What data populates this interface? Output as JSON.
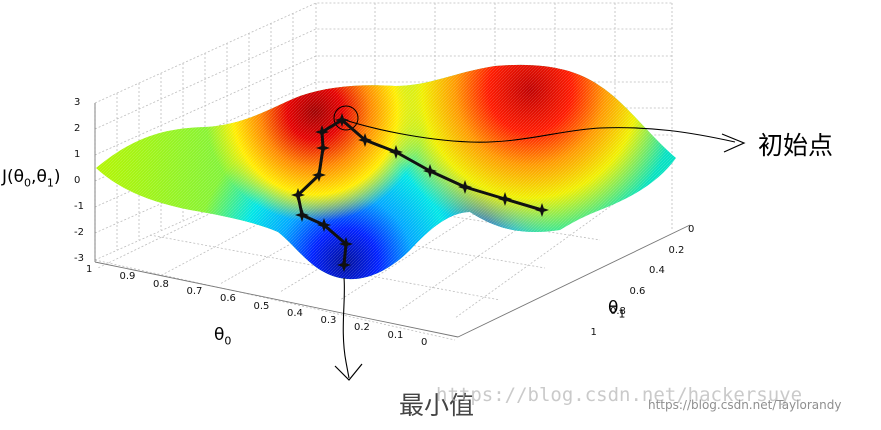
{
  "figure": {
    "zlabel": "J(θ0,θ1)",
    "xlabel": "θ0",
    "ylabel": "θ1",
    "start_label": "初始点",
    "min_label": "最小值",
    "watermark_main": "https://blog.csdn.net/hackersuye",
    "watermark_small": "https://blog.csdn.net/Taylorandy",
    "colors": {
      "start_arrow": "#000000",
      "path": "#111111",
      "surface_peak": "#d40000",
      "surface_valley": "#0015b8"
    }
  },
  "axes": {
    "z_ticks": [
      "3",
      "2",
      "1",
      "0",
      "-1",
      "-2",
      "-3"
    ],
    "theta0_ticks": [
      "1",
      "0.9",
      "0.8",
      "0.7",
      "0.6",
      "0.5",
      "0.4",
      "0.3",
      "0.2",
      "0.1",
      "0"
    ],
    "theta1_ticks": [
      "0",
      "0.2",
      "0.4",
      "0.6",
      "0.8",
      "1"
    ]
  },
  "icons": [
    "star-marker-icon",
    "arrow-icon"
  ]
}
